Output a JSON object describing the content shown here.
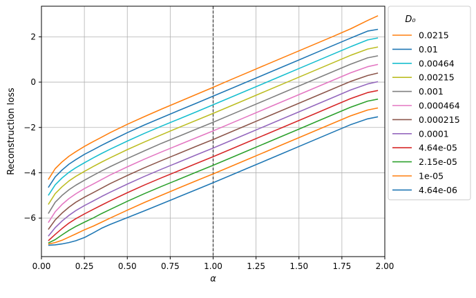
{
  "chart_data": {
    "type": "line",
    "xlabel": "α",
    "ylabel": "Reconstruction loss",
    "xlim": [
      0.0,
      2.0
    ],
    "ylim": [
      -7.7,
      3.35
    ],
    "xticks": [
      0.0,
      0.25,
      0.5,
      0.75,
      1.0,
      1.25,
      1.5,
      1.75,
      2.0
    ],
    "xtick_labels": [
      "0.00",
      "0.25",
      "0.50",
      "0.75",
      "1.00",
      "1.25",
      "1.50",
      "1.75",
      "2.00"
    ],
    "yticks": [
      -6,
      -4,
      -2,
      0,
      2
    ],
    "ytick_labels": [
      "−6",
      "−4",
      "−2",
      "0",
      "2"
    ],
    "grid": true,
    "vline": {
      "x": 1.0,
      "style": "dashed",
      "color": "#333333"
    },
    "legend": {
      "title": "D₀",
      "placement": "outside-right"
    },
    "x": [
      0.04,
      0.08,
      0.12,
      0.16,
      0.2,
      0.25,
      0.3,
      0.35,
      0.4,
      0.5,
      0.6,
      0.7,
      0.8,
      0.9,
      1.0,
      1.1,
      1.2,
      1.3,
      1.4,
      1.5,
      1.6,
      1.7,
      1.8,
      1.9,
      1.96
    ],
    "series": [
      {
        "name": "0.0215",
        "color": "#ff7f0e",
        "values": [
          -4.3,
          -3.82,
          -3.52,
          -3.27,
          -3.07,
          -2.84,
          -2.63,
          -2.43,
          -2.23,
          -1.86,
          -1.52,
          -1.19,
          -0.87,
          -0.55,
          -0.23,
          0.1,
          0.42,
          0.74,
          1.06,
          1.38,
          1.7,
          2.02,
          2.35,
          2.72,
          2.93
        ]
      },
      {
        "name": "0.01",
        "color": "#1f77b4",
        "values": [
          -4.65,
          -4.18,
          -3.88,
          -3.62,
          -3.42,
          -3.19,
          -2.99,
          -2.79,
          -2.6,
          -2.23,
          -1.89,
          -1.57,
          -1.25,
          -0.94,
          -0.62,
          -0.3,
          0.02,
          0.34,
          0.66,
          0.98,
          1.3,
          1.62,
          1.94,
          2.25,
          2.33
        ]
      },
      {
        "name": "0.00464",
        "color": "#17becf",
        "values": [
          -5.0,
          -4.53,
          -4.23,
          -3.98,
          -3.78,
          -3.56,
          -3.35,
          -3.15,
          -2.96,
          -2.6,
          -2.26,
          -1.94,
          -1.63,
          -1.32,
          -1.0,
          -0.68,
          -0.36,
          -0.04,
          0.28,
          0.6,
          0.92,
          1.24,
          1.56,
          1.86,
          1.95
        ]
      },
      {
        "name": "0.00215",
        "color": "#bcbd22",
        "values": [
          -5.4,
          -4.92,
          -4.62,
          -4.36,
          -4.16,
          -3.94,
          -3.73,
          -3.53,
          -3.34,
          -2.98,
          -2.64,
          -2.32,
          -2.0,
          -1.69,
          -1.38,
          -1.06,
          -0.74,
          -0.42,
          -0.1,
          0.22,
          0.54,
          0.86,
          1.18,
          1.46,
          1.55
        ]
      },
      {
        "name": "0.001",
        "color": "#7f7f7f",
        "values": [
          -5.8,
          -5.3,
          -5.0,
          -4.75,
          -4.55,
          -4.33,
          -4.12,
          -3.92,
          -3.73,
          -3.37,
          -3.03,
          -2.7,
          -2.39,
          -2.08,
          -1.77,
          -1.45,
          -1.13,
          -0.81,
          -0.49,
          -0.17,
          0.15,
          0.47,
          0.79,
          1.07,
          1.16
        ]
      },
      {
        "name": "0.000464",
        "color": "#e377c2",
        "values": [
          -6.2,
          -5.72,
          -5.4,
          -5.14,
          -4.93,
          -4.7,
          -4.5,
          -4.3,
          -4.1,
          -3.74,
          -3.4,
          -3.08,
          -2.77,
          -2.46,
          -2.15,
          -1.83,
          -1.51,
          -1.19,
          -0.87,
          -0.55,
          -0.23,
          0.09,
          0.41,
          0.68,
          0.78
        ]
      },
      {
        "name": "0.000215",
        "color": "#8c564b",
        "values": [
          -6.5,
          -6.08,
          -5.78,
          -5.52,
          -5.3,
          -5.08,
          -4.88,
          -4.68,
          -4.48,
          -4.12,
          -3.78,
          -3.46,
          -3.15,
          -2.84,
          -2.53,
          -2.21,
          -1.89,
          -1.57,
          -1.25,
          -0.93,
          -0.61,
          -0.29,
          0.03,
          0.29,
          0.4
        ]
      },
      {
        "name": "0.0001",
        "color": "#9467bd",
        "values": [
          -6.8,
          -6.42,
          -6.13,
          -5.88,
          -5.67,
          -5.45,
          -5.25,
          -5.05,
          -4.86,
          -4.5,
          -4.16,
          -3.84,
          -3.53,
          -3.22,
          -2.91,
          -2.59,
          -2.27,
          -1.95,
          -1.63,
          -1.31,
          -0.99,
          -0.67,
          -0.35,
          -0.08,
          0.02
        ]
      },
      {
        "name": "4.64e-05",
        "color": "#d62728",
        "values": [
          -7.0,
          -6.72,
          -6.46,
          -6.22,
          -6.03,
          -5.82,
          -5.62,
          -5.43,
          -5.24,
          -4.88,
          -4.54,
          -4.22,
          -3.91,
          -3.6,
          -3.29,
          -2.97,
          -2.65,
          -2.33,
          -2.01,
          -1.69,
          -1.37,
          -1.05,
          -0.73,
          -0.46,
          -0.37
        ]
      },
      {
        "name": "2.15e-05",
        "color": "#2ca02c",
        "values": [
          -7.1,
          -6.95,
          -6.74,
          -6.54,
          -6.37,
          -6.18,
          -6.0,
          -5.8,
          -5.62,
          -5.26,
          -4.92,
          -4.6,
          -4.29,
          -3.98,
          -3.67,
          -3.35,
          -3.03,
          -2.71,
          -2.39,
          -2.07,
          -1.75,
          -1.43,
          -1.11,
          -0.84,
          -0.75
        ]
      },
      {
        "name": "1e-05",
        "color": "#ff7f0e",
        "values": [
          -7.15,
          -7.08,
          -6.98,
          -6.84,
          -6.7,
          -6.52,
          -6.36,
          -6.18,
          -6.0,
          -5.65,
          -5.31,
          -4.99,
          -4.67,
          -4.36,
          -4.05,
          -3.73,
          -3.41,
          -3.09,
          -2.77,
          -2.45,
          -2.13,
          -1.81,
          -1.49,
          -1.23,
          -1.14
        ]
      },
      {
        "name": "4.64e-06",
        "color": "#1f77b4",
        "values": [
          -7.2,
          -7.18,
          -7.14,
          -7.08,
          -7.0,
          -6.86,
          -6.66,
          -6.45,
          -6.28,
          -5.98,
          -5.68,
          -5.37,
          -5.06,
          -4.75,
          -4.44,
          -4.12,
          -3.8,
          -3.48,
          -3.16,
          -2.84,
          -2.52,
          -2.2,
          -1.88,
          -1.62,
          -1.53
        ]
      }
    ]
  }
}
